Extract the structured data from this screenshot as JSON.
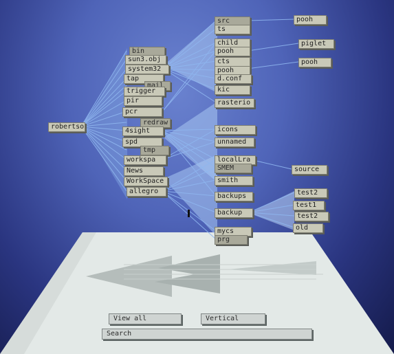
{
  "tree": {
    "root": {
      "label": "robertso"
    },
    "level1": [
      {
        "label": "bin"
      },
      {
        "label": "sun3.obj"
      },
      {
        "label": "system32"
      },
      {
        "label": "tap"
      },
      {
        "label": "mail"
      },
      {
        "label": "trigger"
      },
      {
        "label": "pir"
      },
      {
        "label": "pcr"
      },
      {
        "label": "redraw"
      },
      {
        "label": "4sight"
      },
      {
        "label": "spd"
      },
      {
        "label": "tmp"
      },
      {
        "label": "workspa"
      },
      {
        "label": "News"
      },
      {
        "label": "WorkSpace"
      },
      {
        "label": "allegro"
      }
    ],
    "level2": [
      {
        "label": "src"
      },
      {
        "label": "ts"
      },
      {
        "label": "child"
      },
      {
        "label": "pooh"
      },
      {
        "label": "cts"
      },
      {
        "label": "pooh"
      },
      {
        "label": "d.conf"
      },
      {
        "label": "kic"
      },
      {
        "label": "rasterio"
      },
      {
        "label": "icons"
      },
      {
        "label": "unnamed"
      },
      {
        "label": "localLra"
      },
      {
        "label": "SMEM"
      },
      {
        "label": "smith"
      },
      {
        "label": "backups"
      },
      {
        "label": "backup"
      },
      {
        "label": "mycs"
      },
      {
        "label": "prg"
      }
    ],
    "level3": [
      {
        "label": "pooh"
      },
      {
        "label": "piglet"
      },
      {
        "label": "pooh"
      },
      {
        "label": "source"
      },
      {
        "label": "test2"
      },
      {
        "label": "test1"
      },
      {
        "label": "test2"
      },
      {
        "label": "old"
      }
    ]
  },
  "controls": {
    "view_all": "View all",
    "vertical": "Vertical",
    "search": "Search"
  },
  "colors": {
    "link": "#8fb6ef",
    "node_face": "#c9c9b8",
    "floor": "#dfe5e3"
  }
}
